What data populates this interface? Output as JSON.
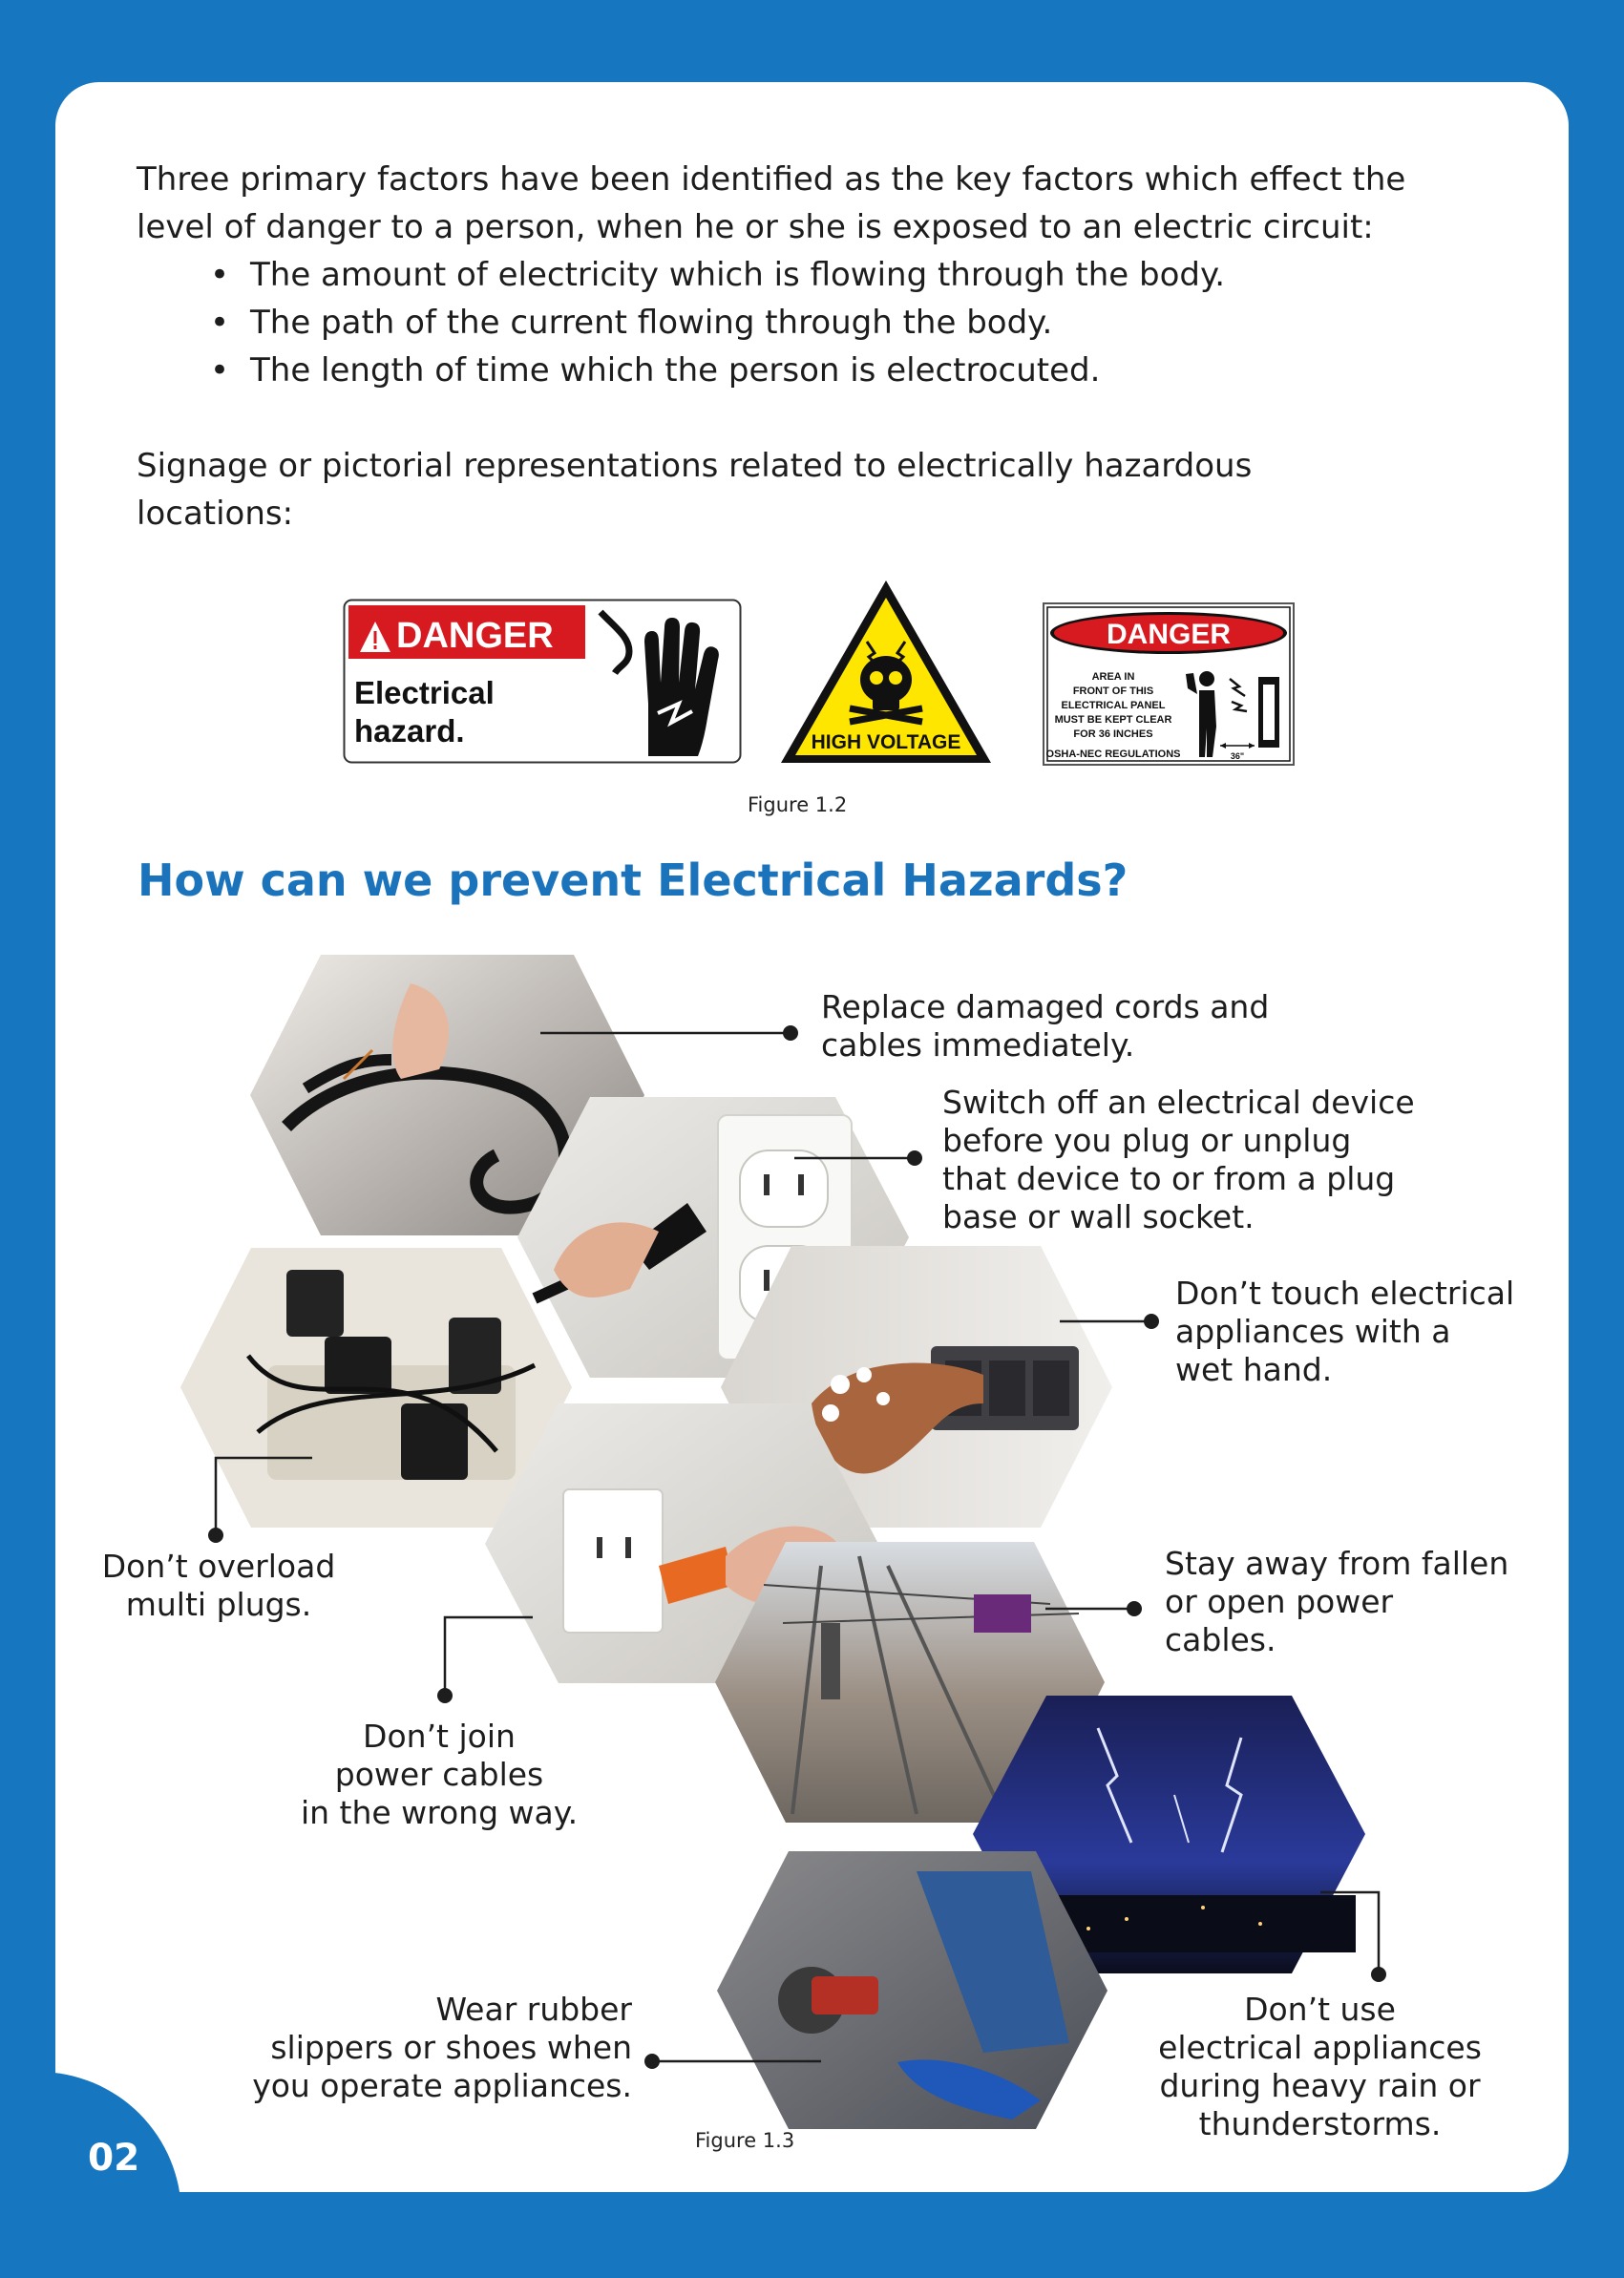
{
  "intro": {
    "paragraph": "Three primary factors have been identified as the key factors which effect the level of danger to a person, when he or she is exposed to an electric circuit:",
    "bullets": [
      "The amount of electricity which is flowing through the body.",
      "The path of the current flowing through the body.",
      "The length of time which the person is electrocuted."
    ]
  },
  "signage_text": "Signage or pictorial representations related to electrically hazardous locations:",
  "signs": {
    "sign1_header": "DANGER",
    "sign1_body_line1": "Electrical",
    "sign1_body_line2": "hazard.",
    "sign2_label": "HIGH VOLTAGE",
    "sign3_header": "DANGER",
    "sign3_lines": [
      "AREA IN",
      "FRONT OF THIS",
      "ELECTRICAL PANEL",
      "MUST BE KEPT CLEAR",
      "FOR 36 INCHES",
      "OSHA-NEC REGULATIONS"
    ],
    "sign3_dim": "36\""
  },
  "figure_1_2": "Figure 1.2",
  "section_title": "How can we prevent Electrical Hazards?",
  "tips": {
    "replace_cords": [
      "Replace damaged cords and",
      "cables immediately."
    ],
    "switch_off": [
      "Switch off an electrical device",
      "before you plug or unplug",
      "that device to or from a plug",
      "base or wall socket."
    ],
    "wet_hand": [
      "Don’t touch electrical",
      "appliances with a",
      "wet hand."
    ],
    "overload": [
      "Don’t overload",
      "multi plugs."
    ],
    "fallen_cables": [
      "Stay away from fallen",
      "or open power",
      "cables."
    ],
    "join_cables": [
      "Don’t join",
      "power cables",
      "in the wrong way."
    ],
    "rubber_shoes": [
      "Wear rubber",
      "slippers or shoes when",
      "you operate appliances."
    ],
    "rain": [
      "Don’t use",
      "electrical appliances",
      "during  heavy rain or",
      "thunderstorms."
    ]
  },
  "figure_1_3": "Figure 1.3",
  "page_number": "02",
  "colors": {
    "brand_blue": "#1676c0",
    "danger_red": "#d71920",
    "warning_yellow": "#ffe600"
  }
}
